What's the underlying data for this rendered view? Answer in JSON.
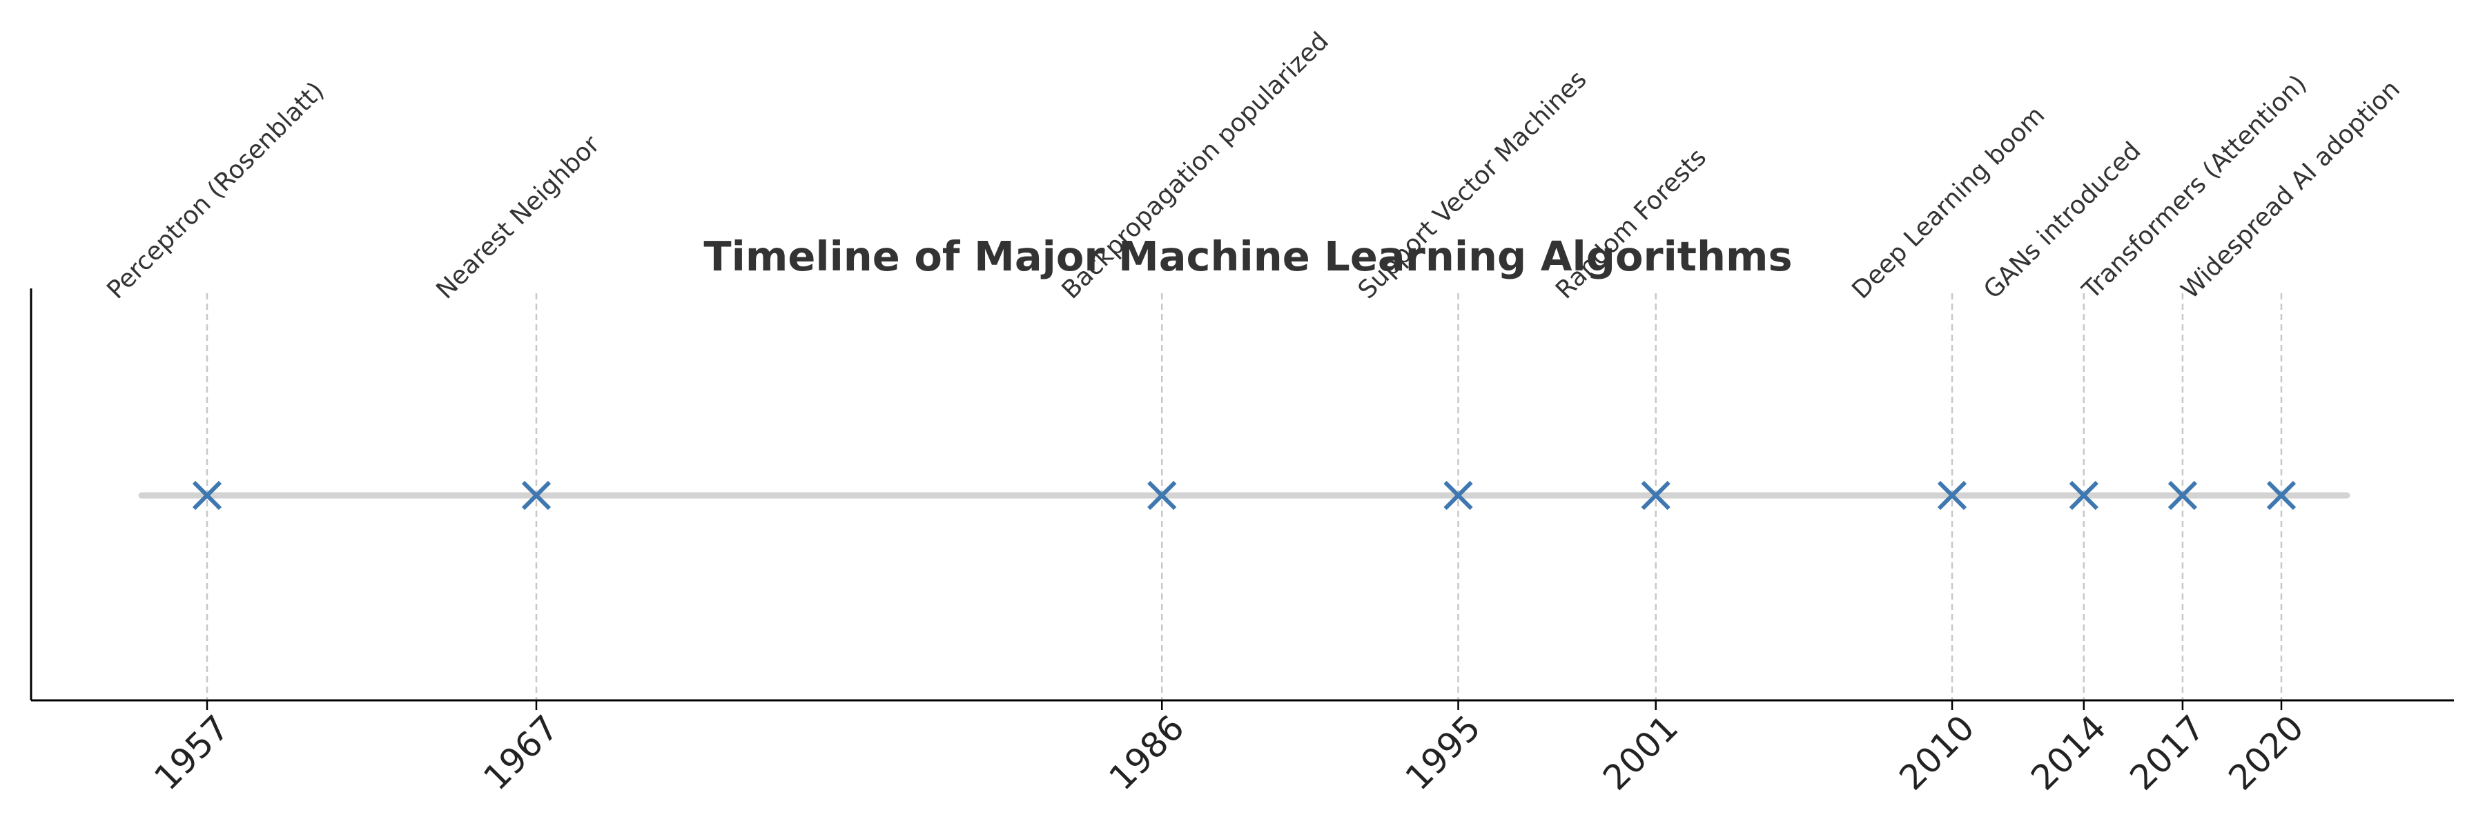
{
  "chart_data": {
    "type": "scatter",
    "title": "Timeline of Major Machine Learning Algorithms",
    "xlabel": "",
    "ylabel": "",
    "xlim": [
      1952.5,
      2024.2
    ],
    "grid": "vertical dashed lines at each event year",
    "marker": "x",
    "colors": {
      "marker": "#3f78b0",
      "baseline": "#d3d3d3",
      "guide": "#c8c8c8",
      "axis": "#000000",
      "text": "#333333"
    },
    "events": [
      {
        "x": 1957,
        "y": 0,
        "label": "Perceptron (Rosenblatt)"
      },
      {
        "x": 1967,
        "y": 0,
        "label": "Nearest Neighbor"
      },
      {
        "x": 1986,
        "y": 0,
        "label": "Backpropagation popularized"
      },
      {
        "x": 1995,
        "y": 0,
        "label": "Support Vector Machines"
      },
      {
        "x": 2001,
        "y": 0,
        "label": "Random Forests"
      },
      {
        "x": 2010,
        "y": 0,
        "label": "Deep Learning boom"
      },
      {
        "x": 2014,
        "y": 0,
        "label": "GANs introduced"
      },
      {
        "x": 2017,
        "y": 0,
        "label": "Transformers (Attention)"
      },
      {
        "x": 2020,
        "y": 0,
        "label": "Widespread AI adoption"
      }
    ],
    "xticks": [
      "1957",
      "1967",
      "1986",
      "1995",
      "2001",
      "2010",
      "2014",
      "2017",
      "2020"
    ]
  }
}
